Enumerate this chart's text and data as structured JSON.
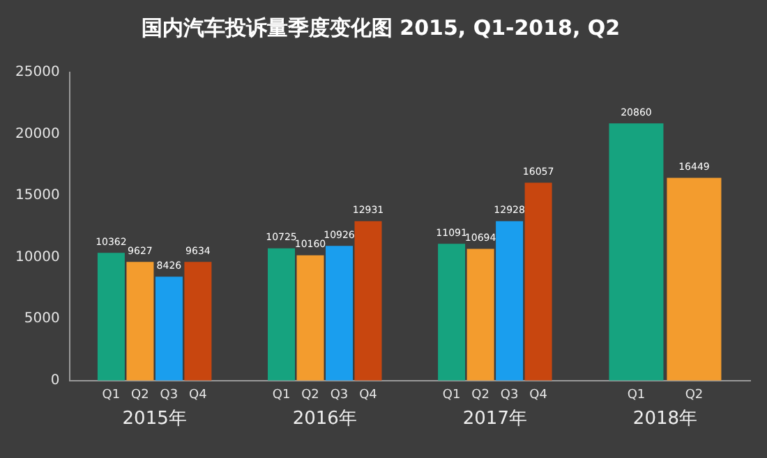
{
  "chart_data": {
    "type": "bar",
    "title": "国内汽车投诉量季度变化图 2015, Q1-2018, Q2",
    "categories": [
      "2015年",
      "2016年",
      "2017年",
      "2018年"
    ],
    "series": [
      {
        "name": "Q1",
        "color": "#16a37f",
        "values": [
          10362,
          10725,
          11091,
          20860
        ]
      },
      {
        "name": "Q2",
        "color": "#f39c2e",
        "values": [
          9627,
          10160,
          10694,
          16449
        ]
      },
      {
        "name": "Q3",
        "color": "#1a9eee",
        "values": [
          8426,
          10926,
          12928,
          null
        ]
      },
      {
        "name": "Q4",
        "color": "#c8460f",
        "values": [
          9634,
          12931,
          16057,
          null
        ]
      }
    ],
    "ylim": [
      0,
      25000
    ],
    "yticks": [
      0,
      5000,
      10000,
      15000,
      20000,
      25000
    ],
    "data_labels": true,
    "grid": false,
    "legend": false
  }
}
